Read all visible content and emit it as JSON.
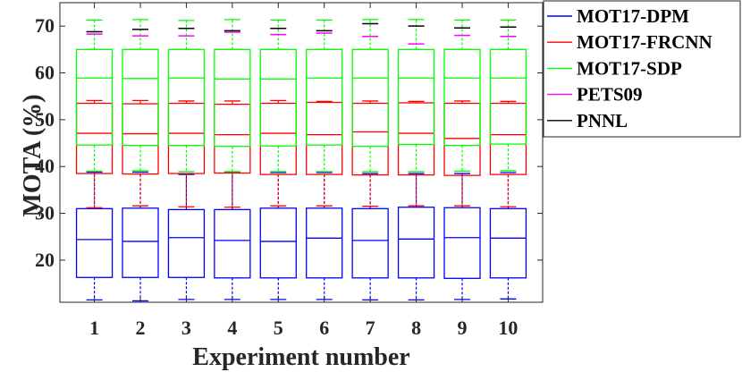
{
  "chart_data": {
    "type": "box",
    "xlabel": "Experiment number",
    "ylabel": "MOTA (%)",
    "categories": [
      "1",
      "2",
      "3",
      "4",
      "5",
      "6",
      "7",
      "8",
      "9",
      "10"
    ],
    "ylim": [
      11,
      75
    ],
    "yticks": [
      20,
      30,
      40,
      50,
      60,
      70
    ],
    "grid": false,
    "legend_position": "right-outside-top",
    "series": [
      {
        "name": "MOT17-DPM",
        "color": "#0000ff",
        "boxes": [
          {
            "whisker_low": 11.5,
            "q1": 16.3,
            "median": 24.4,
            "q3": 31.0,
            "whisker_high": 38.8
          },
          {
            "whisker_low": 11.3,
            "q1": 16.3,
            "median": 24.0,
            "q3": 31.1,
            "whisker_high": 38.8
          },
          {
            "whisker_low": 11.6,
            "q1": 16.3,
            "median": 24.8,
            "q3": 30.8,
            "whisker_high": 38.3
          },
          {
            "whisker_low": 11.6,
            "q1": 16.2,
            "median": 24.2,
            "q3": 30.8,
            "whisker_high": 38.8
          },
          {
            "whisker_low": 11.6,
            "q1": 16.2,
            "median": 24.0,
            "q3": 31.1,
            "whisker_high": 38.7
          },
          {
            "whisker_low": 11.6,
            "q1": 16.2,
            "median": 24.7,
            "q3": 31.1,
            "whisker_high": 38.7
          },
          {
            "whisker_low": 11.5,
            "q1": 16.2,
            "median": 24.2,
            "q3": 31.0,
            "whisker_high": 38.5
          },
          {
            "whisker_low": 11.5,
            "q1": 16.2,
            "median": 24.5,
            "q3": 31.3,
            "whisker_high": 38.5
          },
          {
            "whisker_low": 11.6,
            "q1": 16.1,
            "median": 24.8,
            "q3": 31.2,
            "whisker_high": 38.5
          },
          {
            "whisker_low": 11.7,
            "q1": 16.2,
            "median": 24.7,
            "q3": 31.0,
            "whisker_high": 38.7
          }
        ]
      },
      {
        "name": "MOT17-FRCNN",
        "color": "#ff0000",
        "boxes": [
          {
            "whisker_low": 31.2,
            "q1": 38.5,
            "median": 47.1,
            "q3": 53.5,
            "whisker_high": 54.1
          },
          {
            "whisker_low": 31.6,
            "q1": 38.4,
            "median": 47.0,
            "q3": 53.4,
            "whisker_high": 54.1
          },
          {
            "whisker_low": 31.4,
            "q1": 38.5,
            "median": 47.1,
            "q3": 53.5,
            "whisker_high": 54.0
          },
          {
            "whisker_low": 31.3,
            "q1": 38.6,
            "median": 46.8,
            "q3": 53.3,
            "whisker_high": 54.0
          },
          {
            "whisker_low": 31.6,
            "q1": 38.3,
            "median": 47.1,
            "q3": 53.5,
            "whisker_high": 54.1
          },
          {
            "whisker_low": 31.6,
            "q1": 38.3,
            "median": 46.8,
            "q3": 53.7,
            "whisker_high": 53.9
          },
          {
            "whisker_low": 31.5,
            "q1": 38.2,
            "median": 47.4,
            "q3": 53.5,
            "whisker_high": 54.0
          },
          {
            "whisker_low": 31.6,
            "q1": 38.2,
            "median": 47.1,
            "q3": 53.6,
            "whisker_high": 53.9
          },
          {
            "whisker_low": 31.6,
            "q1": 38.1,
            "median": 46.0,
            "q3": 53.5,
            "whisker_high": 54.0
          },
          {
            "whisker_low": 31.4,
            "q1": 38.3,
            "median": 46.8,
            "q3": 53.5,
            "whisker_high": 53.9
          }
        ]
      },
      {
        "name": "MOT17-SDP",
        "color": "#00ff00",
        "boxes": [
          {
            "whisker_low": 39.0,
            "q1": 44.6,
            "median": 58.9,
            "q3": 65.0,
            "whisker_high": 71.3
          },
          {
            "whisker_low": 39.1,
            "q1": 44.5,
            "median": 58.8,
            "q3": 65.0,
            "whisker_high": 71.4
          },
          {
            "whisker_low": 38.9,
            "q1": 44.5,
            "median": 58.9,
            "q3": 65.0,
            "whisker_high": 71.2
          },
          {
            "whisker_low": 38.9,
            "q1": 44.3,
            "median": 58.7,
            "q3": 65.0,
            "whisker_high": 71.4
          },
          {
            "whisker_low": 38.9,
            "q1": 44.4,
            "median": 58.7,
            "q3": 65.0,
            "whisker_high": 71.3
          },
          {
            "whisker_low": 38.9,
            "q1": 44.6,
            "median": 58.9,
            "q3": 65.0,
            "whisker_high": 71.3
          },
          {
            "whisker_low": 38.9,
            "q1": 44.3,
            "median": 58.9,
            "q3": 65.0,
            "whisker_high": 71.4
          },
          {
            "whisker_low": 38.9,
            "q1": 44.7,
            "median": 58.9,
            "q3": 65.0,
            "whisker_high": 71.4
          },
          {
            "whisker_low": 39.0,
            "q1": 44.5,
            "median": 58.9,
            "q3": 65.0,
            "whisker_high": 71.3
          },
          {
            "whisker_low": 39.1,
            "q1": 44.8,
            "median": 58.9,
            "q3": 65.0,
            "whisker_high": 71.3
          }
        ]
      },
      {
        "name": "PETS09",
        "color": "#ff00ff",
        "values": [
          68.3,
          67.9,
          67.9,
          68.7,
          68.2,
          68.5,
          67.8,
          66.2,
          68.0,
          67.8
        ]
      },
      {
        "name": "PNNL",
        "color": "#000000",
        "values": [
          68.8,
          69.3,
          69.5,
          69.0,
          69.5,
          69.0,
          70.5,
          70.0,
          69.6,
          69.8
        ]
      }
    ]
  }
}
